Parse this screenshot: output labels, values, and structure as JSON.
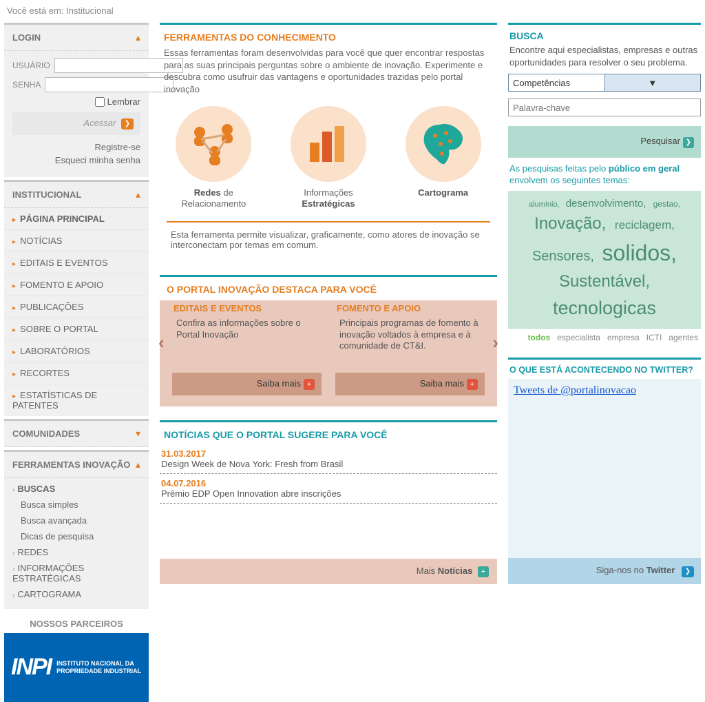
{
  "breadcrumb": "Você está em: Institucional",
  "login": {
    "title": "LOGIN",
    "user_label": "USUÁRIO",
    "pass_label": "SENHA",
    "remember_label": "Lembrar",
    "access_label": "Acessar",
    "register_link": "Registre-se",
    "forgot_link": "Esqueci minha senha"
  },
  "institucional": {
    "title": "INSTITUCIONAL",
    "items": [
      {
        "label": "PÁGINA PRINCIPAL",
        "bold": true
      },
      {
        "label": "NOTÍCIAS"
      },
      {
        "label": "EDITAIS E EVENTOS"
      },
      {
        "label": "FOMENTO E APOIO"
      },
      {
        "label": "PUBLICAÇÕES"
      },
      {
        "label": "SOBRE O PORTAL"
      },
      {
        "label": "LABORATÓRIOS"
      },
      {
        "label": "RECORTES"
      },
      {
        "label": "ESTATÍSTICAS DE PATENTES"
      }
    ]
  },
  "comunidades": {
    "title": "COMUNIDADES"
  },
  "ferramentas_nav": {
    "title": "FERRAMENTAS INOVAÇÃO",
    "buscas_label": "BUSCAS",
    "buscas_sub": [
      "Busca simples",
      "Busca avançada",
      "Dicas de pesquisa"
    ],
    "redes_label": "REDES",
    "informacoes_label": "INFORMAÇÕES ESTRATÉGICAS",
    "cartograma_label": "CARTOGRAMA"
  },
  "parceiros": {
    "title": "NOSSOS PARCEIROS",
    "inpi_abbr": "INPI",
    "inpi_full": "INSTITUTO NACIONAL DA PROPRIEDADE INDUSTRIAL"
  },
  "ferramentas": {
    "title": "FERRAMENTAS DO CONHECIMENTO",
    "desc": "Essas ferramentas foram desenvolvidas para você que quer encontrar respostas para as suas principais perguntas sobre o ambiente de inovação. Experimente e descubra como usufruir das vantagens e oportunidades trazidas pelo portal inovação",
    "tools": [
      {
        "line1": "Redes",
        "suffix": "de",
        "line2": "Relacionamento"
      },
      {
        "line1": "Informações",
        "line2_b": "Estratégicas"
      },
      {
        "line1_b": "Cartograma"
      }
    ],
    "caption": "Esta ferramenta permite visualizar, graficamente, como atores de inovação se interconectam por temas em comum."
  },
  "destaca": {
    "title": "O PORTAL INOVAÇÃO DESTACA PARA VOCÊ",
    "col1_title": "EDITAIS E EVENTOS",
    "col1_desc": "Confira as informações sobre o Portal Inovação",
    "col2_title": "FOMENTO E APOIO",
    "col2_desc": "Principais programas de fomento à inovação voltados à empresa e à comunidade de CT&I.",
    "saiba_label": "Saiba mais"
  },
  "noticias": {
    "title": "NOTÍCIAS QUE O PORTAL SUGERE PARA VOCÊ",
    "items": [
      {
        "date": "31.03.2017",
        "title": "Design Week de Nova York: Fresh from Brasil"
      },
      {
        "date": "04.07.2016",
        "title": "Prêmio EDP Open Innovation abre inscrições"
      }
    ],
    "more_prefix": "Mais ",
    "more_bold": "Notícias"
  },
  "busca": {
    "title": "BUSCA",
    "desc": "Encontre aqui especialistas, empresas e outras oportunidades para resolver o seu problema.",
    "select_value": "Competências",
    "keyword_placeholder": "Palavra-chave",
    "search_label": "Pesquisar"
  },
  "tags": {
    "intro_pre": "As pesquisas feitas pelo ",
    "intro_bold": "público em geral",
    "intro_post": " envolvem os seguintes temas:",
    "cloud": [
      {
        "text": "alumínio,",
        "size": 11
      },
      {
        "text": "desenvolvimento,",
        "size": 15
      },
      {
        "text": "gestao,",
        "size": 12
      },
      {
        "text": "Inovação,",
        "size": 24
      },
      {
        "text": "reciclagem,",
        "size": 17
      },
      {
        "text": "Sensores,",
        "size": 20
      },
      {
        "text": "solidos,",
        "size": 32
      },
      {
        "text": "Sustentável,",
        "size": 24
      },
      {
        "text": "tecnologicas",
        "size": 27
      }
    ],
    "filters": [
      "todos",
      "especialista",
      "empresa",
      "ICTI",
      "agentes"
    ]
  },
  "twitter": {
    "title": "O QUE ESTÁ ACONTECENDO NO TWITTER?",
    "link_text": "Tweets de @portalinovacao",
    "follow_pre": "Siga-nos no ",
    "follow_bold": "Twitter"
  },
  "colors": {
    "orange": "#e67e22",
    "teal": "#189aa8",
    "peach_bg": "#e9c9bb",
    "mint": "#b1dccf",
    "cloud_bg": "#c9e6d8",
    "inpi_blue": "#0064b3"
  }
}
